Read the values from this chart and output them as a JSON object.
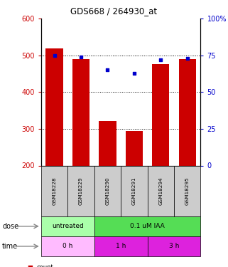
{
  "title": "GDS668 / 264930_at",
  "samples": [
    "GSM18228",
    "GSM18229",
    "GSM18290",
    "GSM18291",
    "GSM18294",
    "GSM18295"
  ],
  "bar_values": [
    519,
    490,
    322,
    294,
    476,
    490
  ],
  "percentile_values": [
    75,
    74,
    65,
    63,
    72,
    73
  ],
  "bar_color": "#cc0000",
  "dot_color": "#0000cc",
  "ylim_left": [
    200,
    600
  ],
  "ylim_right": [
    0,
    100
  ],
  "yticks_left": [
    200,
    300,
    400,
    500,
    600
  ],
  "yticks_right": [
    0,
    25,
    50,
    75,
    100
  ],
  "ytick_labels_left": [
    "200",
    "300",
    "400",
    "500",
    "600"
  ],
  "ytick_labels_right": [
    "0",
    "25",
    "50",
    "75",
    "100%"
  ],
  "dose_groups": [
    {
      "label": "untreated",
      "start": 0,
      "end": 2,
      "color": "#aaffaa"
    },
    {
      "label": "0.1 uM IAA",
      "start": 2,
      "end": 6,
      "color": "#55dd55"
    }
  ],
  "time_groups": [
    {
      "label": "0 h",
      "start": 0,
      "end": 2,
      "color": "#ffbbff"
    },
    {
      "label": "1 h",
      "start": 2,
      "end": 4,
      "color": "#ee44ee"
    },
    {
      "label": "3 h",
      "start": 4,
      "end": 6,
      "color": "#ee44ee"
    }
  ],
  "bar_color_legend": "#cc0000",
  "dot_color_legend": "#0000cc",
  "bar_width": 0.65,
  "sample_bg_color": "#cccccc",
  "left_tick_color": "#cc0000",
  "right_tick_color": "#0000cc",
  "grid_lines": [
    300,
    400,
    500
  ]
}
